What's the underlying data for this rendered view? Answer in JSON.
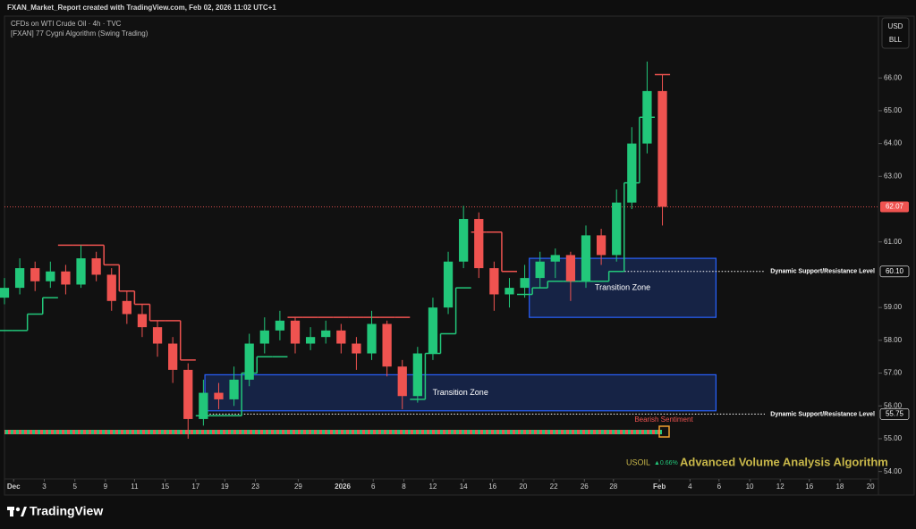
{
  "header": {
    "created": "FXAN_Market_Report created with TradingView.com, Feb 02, 2026 11:02 UTC+1",
    "symbol": "CFDs on WTI Crude Oil · 4h · TVC",
    "indicator": "[FXAN] 77 Cygni Algorithm (Swing Trading)",
    "currency": "USD",
    "unit": "BLL"
  },
  "chart_data": {
    "type": "candlestick",
    "up_color": "#22c77a",
    "down_color": "#ef5350",
    "open": [
      59.3,
      59.6,
      60.2,
      59.8,
      60.1,
      59.7,
      60.5,
      60.0,
      59.2,
      58.8,
      58.4,
      57.9,
      57.1,
      55.6,
      56.4,
      56.2,
      56.8,
      57.9,
      58.3,
      58.6,
      57.9,
      58.1,
      58.3,
      57.9,
      57.6,
      58.5,
      57.2,
      56.3,
      57.6,
      59.0,
      60.4,
      61.7,
      60.2,
      59.4,
      59.6,
      59.9,
      60.4,
      60.6,
      59.8,
      61.2,
      60.6,
      62.2,
      64.0,
      65.6
    ],
    "high": [
      59.9,
      60.5,
      60.4,
      60.4,
      60.3,
      60.9,
      60.7,
      60.2,
      59.5,
      59.1,
      58.6,
      58.1,
      57.3,
      56.8,
      56.7,
      57.2,
      58.2,
      58.7,
      58.9,
      58.7,
      58.4,
      58.6,
      58.5,
      58.1,
      58.9,
      58.6,
      57.4,
      57.8,
      59.3,
      60.7,
      62.1,
      61.9,
      60.4,
      59.9,
      60.3,
      60.7,
      60.8,
      60.7,
      61.5,
      61.4,
      62.6,
      64.5,
      66.5,
      66.1
    ],
    "low": [
      59.1,
      59.4,
      59.5,
      59.6,
      59.4,
      59.6,
      59.8,
      58.9,
      58.5,
      58.1,
      57.5,
      56.7,
      55.0,
      55.4,
      55.9,
      56.0,
      56.6,
      57.6,
      58.0,
      57.6,
      57.7,
      57.9,
      57.6,
      57.1,
      57.4,
      56.9,
      55.9,
      56.1,
      57.4,
      58.8,
      60.2,
      59.9,
      58.9,
      59.0,
      59.3,
      59.6,
      59.9,
      59.2,
      59.6,
      60.3,
      60.4,
      62.0,
      63.7,
      61.5
    ],
    "close": [
      59.6,
      60.2,
      59.8,
      60.1,
      59.7,
      60.5,
      60.0,
      59.2,
      58.8,
      58.4,
      57.9,
      57.1,
      55.6,
      56.4,
      56.2,
      56.8,
      57.9,
      58.3,
      58.6,
      57.9,
      58.1,
      58.3,
      57.9,
      57.6,
      58.5,
      57.2,
      56.3,
      57.6,
      59.0,
      60.4,
      61.7,
      60.2,
      59.4,
      59.6,
      59.9,
      60.4,
      60.6,
      59.8,
      61.2,
      60.6,
      62.2,
      64.0,
      65.6,
      62.07
    ],
    "stops": {
      "bull": {
        "color": "#22c77a",
        "values": [
          58.3,
          58.3,
          58.8,
          59.3,
          null,
          null,
          null,
          null,
          null,
          null,
          null,
          null,
          null,
          55.7,
          55.7,
          55.7,
          57.0,
          57.5,
          57.5,
          null,
          null,
          null,
          null,
          null,
          null,
          null,
          null,
          56.2,
          57.6,
          58.2,
          59.6,
          null,
          null,
          null,
          59.4,
          59.6,
          59.8,
          59.8,
          59.8,
          59.8,
          60.1,
          62.8,
          64.8,
          null
        ]
      },
      "bear": {
        "color": "#ef5350",
        "values": [
          null,
          null,
          null,
          null,
          60.9,
          60.9,
          60.9,
          60.3,
          59.5,
          59.1,
          58.6,
          58.6,
          57.4,
          null,
          null,
          null,
          null,
          null,
          null,
          58.7,
          58.7,
          58.7,
          58.7,
          58.7,
          58.7,
          58.7,
          58.7,
          null,
          null,
          null,
          null,
          61.3,
          61.3,
          60.1,
          null,
          null,
          null,
          null,
          null,
          null,
          null,
          null,
          null,
          66.1
        ]
      }
    },
    "zones": [
      {
        "label": "Transition Zone",
        "x": [
          34.3,
          46.5
        ],
        "y": [
          58.7,
          60.5
        ]
      },
      {
        "label": "Transition Zone",
        "x": [
          13.1,
          46.5
        ],
        "y": [
          55.85,
          56.95
        ]
      }
    ],
    "levels": [
      {
        "value": 60.1,
        "label": "60.10",
        "text": "Dynamic Support/Resistance Level",
        "x_start": 39.5
      },
      {
        "value": 55.75,
        "label": "55.75",
        "text": "Dynamic Support/Resistance Level",
        "x_start": 13.2
      }
    ],
    "last_price": 62.07,
    "annotation": "Bearish Sentiment",
    "xlim": [
      0,
      57
    ],
    "xticks": [
      {
        "value": 0.6,
        "label": "Dec"
      },
      {
        "value": 2.6,
        "label": "3"
      },
      {
        "value": 4.6,
        "label": "5"
      },
      {
        "value": 6.6,
        "label": "9"
      },
      {
        "value": 8.5,
        "label": "11"
      },
      {
        "value": 10.5,
        "label": "15"
      },
      {
        "value": 12.5,
        "label": "17"
      },
      {
        "value": 14.4,
        "label": "19"
      },
      {
        "value": 16.4,
        "label": "23"
      },
      {
        "value": 19.2,
        "label": "29"
      },
      {
        "value": 22.1,
        "label": "2026"
      },
      {
        "value": 24.1,
        "label": "6"
      },
      {
        "value": 26.1,
        "label": "8"
      },
      {
        "value": 28.0,
        "label": "12"
      },
      {
        "value": 30.0,
        "label": "14"
      },
      {
        "value": 31.9,
        "label": "16"
      },
      {
        "value": 33.9,
        "label": "20"
      },
      {
        "value": 35.9,
        "label": "22"
      },
      {
        "value": 37.9,
        "label": "26"
      },
      {
        "value": 39.8,
        "label": "28"
      },
      {
        "value": 42.8,
        "label": "Feb"
      },
      {
        "value": 44.8,
        "label": "4"
      },
      {
        "value": 46.7,
        "label": "6"
      },
      {
        "value": 48.7,
        "label": "10"
      },
      {
        "value": 50.7,
        "label": "12"
      },
      {
        "value": 52.6,
        "label": "16"
      },
      {
        "value": 54.6,
        "label": "18"
      },
      {
        "value": 56.6,
        "label": "20"
      }
    ],
    "ylim": [
      53.8,
      67.15
    ],
    "yticks": [
      {
        "value": 54,
        "label": "54.00"
      },
      {
        "value": 55,
        "label": "55.00"
      },
      {
        "value": 56,
        "label": "56.00"
      },
      {
        "value": 57,
        "label": "57.00"
      },
      {
        "value": 58,
        "label": "58.00"
      },
      {
        "value": 59,
        "label": "59.00"
      },
      {
        "value": 61,
        "label": "61.00"
      },
      {
        "value": 63,
        "label": "63.00"
      },
      {
        "value": 64,
        "label": "64.00"
      },
      {
        "value": 65,
        "label": "65.00"
      },
      {
        "value": 66,
        "label": "66.00"
      }
    ]
  },
  "footer": {
    "symbol": "USOIL",
    "change": "▲0.66%",
    "indicator": "Advanced Volume Analysis Algorithm",
    "brand": "TradingView"
  }
}
